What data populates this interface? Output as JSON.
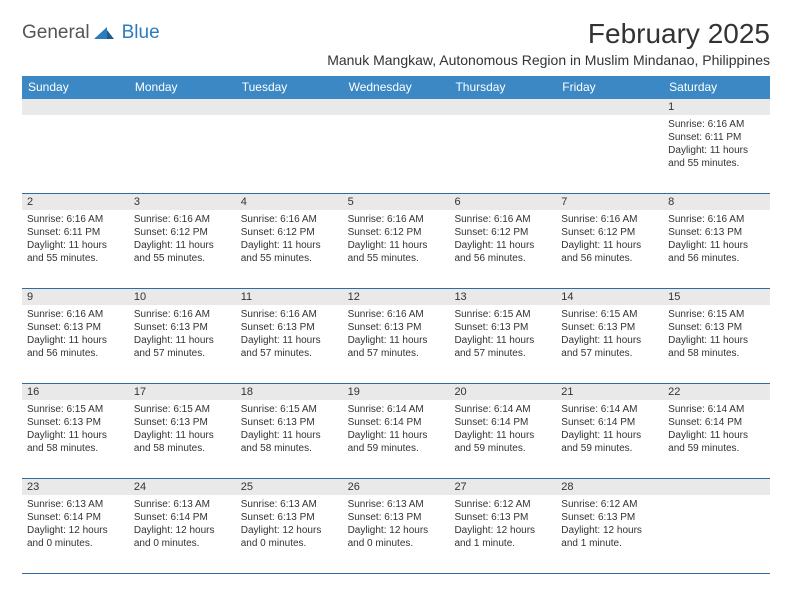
{
  "logo": {
    "part1": "General",
    "part2": "Blue"
  },
  "title": "February 2025",
  "location": "Manuk Mangkaw, Autonomous Region in Muslim Mindanao, Philippines",
  "colors": {
    "header_bg": "#3b88c4",
    "header_text": "#ffffff",
    "row_border": "#2e6da4",
    "daynum_bg": "#e9e9e9",
    "text": "#333333",
    "logo_gray": "#555555",
    "logo_blue": "#2b7bbd"
  },
  "dayHeaders": [
    "Sunday",
    "Monday",
    "Tuesday",
    "Wednesday",
    "Thursday",
    "Friday",
    "Saturday"
  ],
  "weeks": [
    {
      "nums": [
        "",
        "",
        "",
        "",
        "",
        "",
        "1"
      ],
      "cells": [
        "",
        "",
        "",
        "",
        "",
        "",
        "Sunrise: 6:16 AM\nSunset: 6:11 PM\nDaylight: 11 hours and 55 minutes."
      ]
    },
    {
      "nums": [
        "2",
        "3",
        "4",
        "5",
        "6",
        "7",
        "8"
      ],
      "cells": [
        "Sunrise: 6:16 AM\nSunset: 6:11 PM\nDaylight: 11 hours and 55 minutes.",
        "Sunrise: 6:16 AM\nSunset: 6:12 PM\nDaylight: 11 hours and 55 minutes.",
        "Sunrise: 6:16 AM\nSunset: 6:12 PM\nDaylight: 11 hours and 55 minutes.",
        "Sunrise: 6:16 AM\nSunset: 6:12 PM\nDaylight: 11 hours and 55 minutes.",
        "Sunrise: 6:16 AM\nSunset: 6:12 PM\nDaylight: 11 hours and 56 minutes.",
        "Sunrise: 6:16 AM\nSunset: 6:12 PM\nDaylight: 11 hours and 56 minutes.",
        "Sunrise: 6:16 AM\nSunset: 6:13 PM\nDaylight: 11 hours and 56 minutes."
      ]
    },
    {
      "nums": [
        "9",
        "10",
        "11",
        "12",
        "13",
        "14",
        "15"
      ],
      "cells": [
        "Sunrise: 6:16 AM\nSunset: 6:13 PM\nDaylight: 11 hours and 56 minutes.",
        "Sunrise: 6:16 AM\nSunset: 6:13 PM\nDaylight: 11 hours and 57 minutes.",
        "Sunrise: 6:16 AM\nSunset: 6:13 PM\nDaylight: 11 hours and 57 minutes.",
        "Sunrise: 6:16 AM\nSunset: 6:13 PM\nDaylight: 11 hours and 57 minutes.",
        "Sunrise: 6:15 AM\nSunset: 6:13 PM\nDaylight: 11 hours and 57 minutes.",
        "Sunrise: 6:15 AM\nSunset: 6:13 PM\nDaylight: 11 hours and 57 minutes.",
        "Sunrise: 6:15 AM\nSunset: 6:13 PM\nDaylight: 11 hours and 58 minutes."
      ]
    },
    {
      "nums": [
        "16",
        "17",
        "18",
        "19",
        "20",
        "21",
        "22"
      ],
      "cells": [
        "Sunrise: 6:15 AM\nSunset: 6:13 PM\nDaylight: 11 hours and 58 minutes.",
        "Sunrise: 6:15 AM\nSunset: 6:13 PM\nDaylight: 11 hours and 58 minutes.",
        "Sunrise: 6:15 AM\nSunset: 6:13 PM\nDaylight: 11 hours and 58 minutes.",
        "Sunrise: 6:14 AM\nSunset: 6:14 PM\nDaylight: 11 hours and 59 minutes.",
        "Sunrise: 6:14 AM\nSunset: 6:14 PM\nDaylight: 11 hours and 59 minutes.",
        "Sunrise: 6:14 AM\nSunset: 6:14 PM\nDaylight: 11 hours and 59 minutes.",
        "Sunrise: 6:14 AM\nSunset: 6:14 PM\nDaylight: 11 hours and 59 minutes."
      ]
    },
    {
      "nums": [
        "23",
        "24",
        "25",
        "26",
        "27",
        "28",
        ""
      ],
      "cells": [
        "Sunrise: 6:13 AM\nSunset: 6:14 PM\nDaylight: 12 hours and 0 minutes.",
        "Sunrise: 6:13 AM\nSunset: 6:14 PM\nDaylight: 12 hours and 0 minutes.",
        "Sunrise: 6:13 AM\nSunset: 6:13 PM\nDaylight: 12 hours and 0 minutes.",
        "Sunrise: 6:13 AM\nSunset: 6:13 PM\nDaylight: 12 hours and 0 minutes.",
        "Sunrise: 6:12 AM\nSunset: 6:13 PM\nDaylight: 12 hours and 1 minute.",
        "Sunrise: 6:12 AM\nSunset: 6:13 PM\nDaylight: 12 hours and 1 minute.",
        ""
      ]
    }
  ]
}
